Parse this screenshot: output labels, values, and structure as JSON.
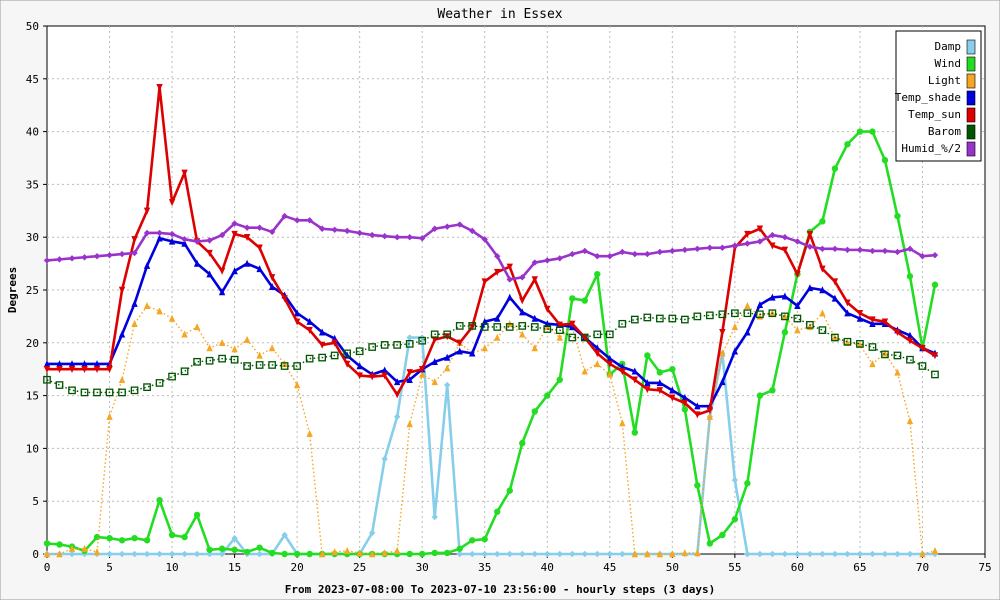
{
  "chart_data": {
    "type": "line",
    "title": "Weather in Essex",
    "xlabel": "From 2023-07-08:00 To 2023-07-10 23:56:00 - hourly steps (3 days)",
    "ylabel": "Degrees",
    "xlim": [
      0,
      75
    ],
    "ylim": [
      0,
      50
    ],
    "x_ticks": [
      0,
      5,
      10,
      15,
      20,
      25,
      30,
      35,
      40,
      45,
      50,
      55,
      60,
      65,
      70,
      75
    ],
    "y_ticks": [
      0,
      5,
      10,
      15,
      20,
      25,
      30,
      35,
      40,
      45,
      50
    ],
    "grid": true,
    "legend_position": "top-right",
    "series": [
      {
        "name": "Damp",
        "color": "#87ceeb",
        "style": "solid",
        "marker": "diamond",
        "x": [
          0,
          1,
          2,
          3,
          4,
          5,
          6,
          7,
          8,
          9,
          10,
          11,
          12,
          13,
          14,
          15,
          16,
          17,
          18,
          19,
          20,
          21,
          22,
          23,
          24,
          25,
          26,
          27,
          28,
          29,
          30,
          31,
          32,
          33,
          34,
          35,
          36,
          37,
          38,
          39,
          40,
          41,
          42,
          43,
          44,
          45,
          46,
          47,
          48,
          49,
          50,
          51,
          52,
          53,
          54,
          55,
          56,
          57,
          58,
          59,
          60,
          61,
          62,
          63,
          64,
          65,
          66,
          67,
          68,
          69,
          70,
          71
        ],
        "values": [
          0,
          0,
          0,
          0,
          0,
          0,
          0,
          0,
          0,
          0,
          0,
          0,
          0,
          0,
          0,
          1.5,
          0,
          0,
          0,
          1.8,
          0,
          0,
          0,
          0,
          0,
          0,
          2,
          9,
          13,
          20.5,
          20.5,
          3.5,
          16,
          0,
          0,
          0,
          0,
          0,
          0,
          0,
          0,
          0,
          0,
          0,
          0,
          0,
          0,
          0,
          0,
          0,
          0,
          0,
          0,
          13,
          19,
          7,
          0,
          0,
          0,
          0,
          0,
          0,
          0,
          0,
          0,
          0,
          0,
          0,
          0,
          0,
          0,
          0
        ]
      },
      {
        "name": "Wind",
        "color": "#22dd22",
        "style": "solid",
        "marker": "circle",
        "x": [
          0,
          1,
          2,
          3,
          4,
          5,
          6,
          7,
          8,
          9,
          10,
          11,
          12,
          13,
          14,
          15,
          16,
          17,
          18,
          19,
          20,
          21,
          22,
          23,
          24,
          25,
          26,
          27,
          28,
          29,
          30,
          31,
          32,
          33,
          34,
          35,
          36,
          37,
          38,
          39,
          40,
          41,
          42,
          43,
          44,
          45,
          46,
          47,
          48,
          49,
          50,
          51,
          52,
          53,
          54,
          55,
          56,
          57,
          58,
          59,
          60,
          61,
          62,
          63,
          64,
          65,
          66,
          67,
          68,
          69,
          70,
          71
        ],
        "values": [
          1,
          0.9,
          0.7,
          0.3,
          1.6,
          1.5,
          1.3,
          1.5,
          1.3,
          5.1,
          1.8,
          1.6,
          3.7,
          0.4,
          0.5,
          0.4,
          0.2,
          0.6,
          0.1,
          0,
          0,
          0,
          0,
          0,
          0,
          0,
          0,
          0,
          0,
          0,
          0,
          0.1,
          0.1,
          0.5,
          1.3,
          1.4,
          4,
          6,
          10.5,
          13.5,
          15,
          16.5,
          24.2,
          24,
          26.5,
          17,
          18,
          11.5,
          18.8,
          17.2,
          17.5,
          13.7,
          6.5,
          1,
          1.8,
          3.3,
          6.7,
          15,
          15.5,
          21,
          26.5,
          30.5,
          31.5,
          36.5,
          38.8,
          40,
          40,
          37.3,
          32,
          26.3,
          19.5,
          25.5
        ]
      },
      {
        "name": "Light",
        "color": "#f5a623",
        "style": "dotted",
        "marker": "triangle",
        "x": [
          0,
          1,
          2,
          3,
          4,
          5,
          6,
          7,
          8,
          9,
          10,
          11,
          12,
          13,
          14,
          15,
          16,
          17,
          18,
          19,
          20,
          21,
          22,
          23,
          24,
          25,
          26,
          27,
          28,
          29,
          30,
          31,
          32,
          33,
          34,
          35,
          36,
          37,
          38,
          39,
          40,
          41,
          42,
          43,
          44,
          45,
          46,
          47,
          48,
          49,
          50,
          51,
          52,
          53,
          54,
          55,
          56,
          57,
          58,
          59,
          60,
          61,
          62,
          63,
          64,
          65,
          66,
          67,
          68,
          69,
          70,
          71
        ],
        "values": [
          0,
          0,
          0.5,
          0.5,
          0.2,
          13,
          16.5,
          21.8,
          23.5,
          23,
          22.3,
          20.8,
          21.5,
          19.5,
          20,
          19.4,
          20.3,
          18.8,
          19.5,
          18,
          16,
          11.4,
          0,
          0.2,
          0.3,
          0.1,
          0,
          0.1,
          0.3,
          12.3,
          17,
          16.3,
          17.6,
          20,
          19,
          19.5,
          20.5,
          21.8,
          20.8,
          19.5,
          21.5,
          20.5,
          21.5,
          17.3,
          18,
          17,
          12.4,
          0,
          0,
          0,
          0,
          0.1,
          0.1,
          13,
          19,
          21.5,
          23.5,
          22.5,
          22.8,
          22.5,
          21.2,
          21.5,
          22.8,
          20.5,
          20,
          19.8,
          18,
          19,
          17.2,
          12.6,
          0,
          0.3
        ]
      },
      {
        "name": "Temp_shade",
        "color": "#0000dd",
        "style": "solid",
        "marker": "triangle",
        "x": [
          0,
          1,
          2,
          3,
          4,
          5,
          6,
          7,
          8,
          9,
          10,
          11,
          12,
          13,
          14,
          15,
          16,
          17,
          18,
          19,
          20,
          21,
          22,
          23,
          24,
          25,
          26,
          27,
          28,
          29,
          30,
          31,
          32,
          33,
          34,
          35,
          36,
          37,
          38,
          39,
          40,
          41,
          42,
          43,
          44,
          45,
          46,
          47,
          48,
          49,
          50,
          51,
          52,
          53,
          54,
          55,
          56,
          57,
          58,
          59,
          60,
          61,
          62,
          63,
          64,
          65,
          66,
          67,
          68,
          69,
          70,
          71
        ],
        "values": [
          18,
          18,
          18,
          18,
          18,
          18,
          20.8,
          23.7,
          27.3,
          29.9,
          29.6,
          29.4,
          27.5,
          26.5,
          24.8,
          26.8,
          27.5,
          27,
          25.3,
          24.5,
          22.8,
          22,
          21,
          20.4,
          18.8,
          17.8,
          17,
          17.4,
          16.3,
          16.5,
          17.5,
          18.2,
          18.6,
          19.2,
          19,
          22,
          22.3,
          24.3,
          22.9,
          22.3,
          21.8,
          21.7,
          21.5,
          20.5,
          19.5,
          18.5,
          17.7,
          17.3,
          16.2,
          16.2,
          15.5,
          14.8,
          14,
          14,
          16.3,
          19.2,
          21,
          23.6,
          24.3,
          24.4,
          23.5,
          25.2,
          25,
          24.2,
          22.8,
          22.3,
          21.8,
          21.8,
          21.2,
          20.7,
          19.5,
          19
        ]
      },
      {
        "name": "Temp_sun",
        "color": "#dd0000",
        "style": "solid",
        "marker": "triangle-down",
        "x": [
          0,
          1,
          2,
          3,
          4,
          5,
          6,
          7,
          8,
          9,
          10,
          11,
          12,
          13,
          14,
          15,
          16,
          17,
          18,
          19,
          20,
          21,
          22,
          23,
          24,
          25,
          26,
          27,
          28,
          29,
          30,
          31,
          32,
          33,
          34,
          35,
          36,
          37,
          38,
          39,
          40,
          41,
          42,
          43,
          44,
          45,
          46,
          47,
          48,
          49,
          50,
          51,
          52,
          53,
          54,
          55,
          56,
          57,
          58,
          59,
          60,
          61,
          62,
          63,
          64,
          65,
          66,
          67,
          68,
          69,
          70,
          71
        ],
        "values": [
          17.5,
          17.5,
          17.5,
          17.5,
          17.5,
          17.5,
          25,
          29.8,
          32.5,
          44.2,
          33.3,
          36.1,
          29.6,
          28.5,
          26.8,
          30.3,
          30,
          29,
          26.2,
          24.2,
          22,
          21.2,
          19.8,
          20,
          18,
          16.9,
          16.8,
          16.9,
          15.1,
          17.2,
          17.5,
          20.3,
          20.6,
          20,
          21.5,
          25.8,
          26.7,
          27.2,
          24,
          26,
          23.2,
          21.7,
          21.8,
          20.5,
          19,
          18,
          17.3,
          16.5,
          15.6,
          15.5,
          14.8,
          14.3,
          13.2,
          13.6,
          21,
          29,
          30.3,
          30.8,
          29.2,
          28.8,
          26.5,
          30.3,
          27,
          25.8,
          23.8,
          22.8,
          22.2,
          22,
          21,
          20.2,
          19.5,
          18.8
        ]
      },
      {
        "name": "Barom",
        "color": "#005500",
        "style": "dotted",
        "marker": "square",
        "x": [
          0,
          1,
          2,
          3,
          4,
          5,
          6,
          7,
          8,
          9,
          10,
          11,
          12,
          13,
          14,
          15,
          16,
          17,
          18,
          19,
          20,
          21,
          22,
          23,
          24,
          25,
          26,
          27,
          28,
          29,
          30,
          31,
          32,
          33,
          34,
          35,
          36,
          37,
          38,
          39,
          40,
          41,
          42,
          43,
          44,
          45,
          46,
          47,
          48,
          49,
          50,
          51,
          52,
          53,
          54,
          55,
          56,
          57,
          58,
          59,
          60,
          61,
          62,
          63,
          64,
          65,
          66,
          67,
          68,
          69,
          70,
          71
        ],
        "values": [
          16.5,
          16,
          15.5,
          15.3,
          15.3,
          15.3,
          15.3,
          15.5,
          15.8,
          16.2,
          16.8,
          17.3,
          18.2,
          18.3,
          18.5,
          18.4,
          17.8,
          17.9,
          17.9,
          17.8,
          17.8,
          18.5,
          18.6,
          18.8,
          19,
          19.2,
          19.6,
          19.8,
          19.8,
          19.9,
          20.2,
          20.8,
          20.8,
          21.6,
          21.6,
          21.5,
          21.5,
          21.5,
          21.6,
          21.5,
          21.3,
          21.2,
          20.5,
          20.5,
          20.8,
          20.8,
          21.8,
          22.2,
          22.4,
          22.3,
          22.3,
          22.2,
          22.5,
          22.6,
          22.7,
          22.8,
          22.8,
          22.7,
          22.8,
          22.5,
          22.3,
          21.7,
          21.2,
          20.5,
          20.1,
          19.9,
          19.6,
          18.9,
          18.8,
          18.4,
          17.8,
          17
        ]
      },
      {
        "name": "Humid_%/2",
        "color": "#9933cc",
        "style": "solid",
        "marker": "diamond",
        "x": [
          0,
          1,
          2,
          3,
          4,
          5,
          6,
          7,
          8,
          9,
          10,
          11,
          12,
          13,
          14,
          15,
          16,
          17,
          18,
          19,
          20,
          21,
          22,
          23,
          24,
          25,
          26,
          27,
          28,
          29,
          30,
          31,
          32,
          33,
          34,
          35,
          36,
          37,
          38,
          39,
          40,
          41,
          42,
          43,
          44,
          45,
          46,
          47,
          48,
          49,
          50,
          51,
          52,
          53,
          54,
          55,
          56,
          57,
          58,
          59,
          60,
          61,
          62,
          63,
          64,
          65,
          66,
          67,
          68,
          69,
          70,
          71
        ],
        "values": [
          27.8,
          27.9,
          28,
          28.1,
          28.2,
          28.3,
          28.4,
          28.5,
          30.4,
          30.4,
          30.3,
          29.8,
          29.6,
          29.7,
          30.2,
          31.3,
          30.9,
          30.9,
          30.5,
          32,
          31.6,
          31.6,
          30.8,
          30.7,
          30.6,
          30.4,
          30.2,
          30.1,
          30,
          30,
          29.9,
          30.8,
          31,
          31.2,
          30.6,
          29.8,
          28.2,
          26,
          26.2,
          27.6,
          27.8,
          28,
          28.4,
          28.7,
          28.2,
          28.2,
          28.6,
          28.4,
          28.4,
          28.6,
          28.7,
          28.8,
          28.9,
          29,
          29,
          29.2,
          29.4,
          29.6,
          30.2,
          30,
          29.6,
          29.1,
          28.9,
          28.9,
          28.8,
          28.8,
          28.7,
          28.7,
          28.6,
          28.9,
          28.2,
          28.3
        ]
      }
    ]
  }
}
